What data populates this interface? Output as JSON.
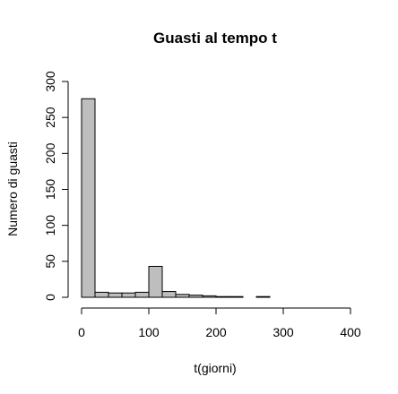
{
  "chart_data": {
    "type": "bar",
    "title": "Guasti al tempo t",
    "xlabel": "t(giorni)",
    "ylabel": "Numero di guasti",
    "xlim": [
      0,
      400
    ],
    "ylim": [
      0,
      300
    ],
    "xticks": [
      0,
      100,
      200,
      300,
      400
    ],
    "yticks": [
      0,
      50,
      100,
      150,
      200,
      250,
      300
    ],
    "bin_width": 20,
    "bins": [
      {
        "start": 0,
        "end": 20,
        "count": 276
      },
      {
        "start": 20,
        "end": 40,
        "count": 7
      },
      {
        "start": 40,
        "end": 60,
        "count": 6
      },
      {
        "start": 60,
        "end": 80,
        "count": 6
      },
      {
        "start": 80,
        "end": 100,
        "count": 7
      },
      {
        "start": 100,
        "end": 120,
        "count": 43
      },
      {
        "start": 120,
        "end": 140,
        "count": 8
      },
      {
        "start": 140,
        "end": 160,
        "count": 4
      },
      {
        "start": 160,
        "end": 180,
        "count": 3
      },
      {
        "start": 180,
        "end": 200,
        "count": 2
      },
      {
        "start": 200,
        "end": 220,
        "count": 1
      },
      {
        "start": 220,
        "end": 240,
        "count": 1
      },
      {
        "start": 240,
        "end": 260,
        "count": 0
      },
      {
        "start": 260,
        "end": 280,
        "count": 1
      },
      {
        "start": 280,
        "end": 300,
        "count": 0
      },
      {
        "start": 300,
        "end": 320,
        "count": 0
      },
      {
        "start": 320,
        "end": 340,
        "count": 0
      }
    ],
    "grid": false,
    "legend": "none"
  }
}
